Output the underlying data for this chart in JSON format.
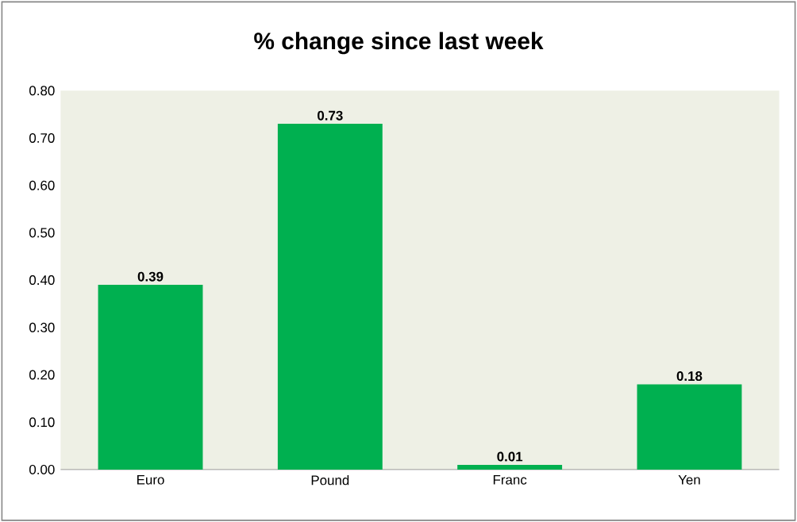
{
  "chart_data": {
    "type": "bar",
    "title": "% change since last week",
    "categories": [
      "Euro",
      "Pound",
      "Franc",
      "Yen"
    ],
    "values": [
      0.39,
      0.73,
      0.01,
      0.18
    ],
    "color": "#00b050",
    "ylim": [
      0,
      0.8
    ],
    "yticks": [
      {
        "value": 0,
        "label": "0.00"
      },
      {
        "value": 0.1,
        "label": "0.10"
      },
      {
        "value": 0.2,
        "label": "0.20"
      },
      {
        "value": 0.3,
        "label": "0.30"
      },
      {
        "value": 0.4,
        "label": "0.40"
      },
      {
        "value": 0.5,
        "label": "0.50"
      },
      {
        "value": 0.6,
        "label": "0.60"
      },
      {
        "value": 0.7,
        "label": "0.70"
      },
      {
        "value": 0.8,
        "label": "0.80"
      }
    ],
    "data_labels": true,
    "grid": false
  }
}
